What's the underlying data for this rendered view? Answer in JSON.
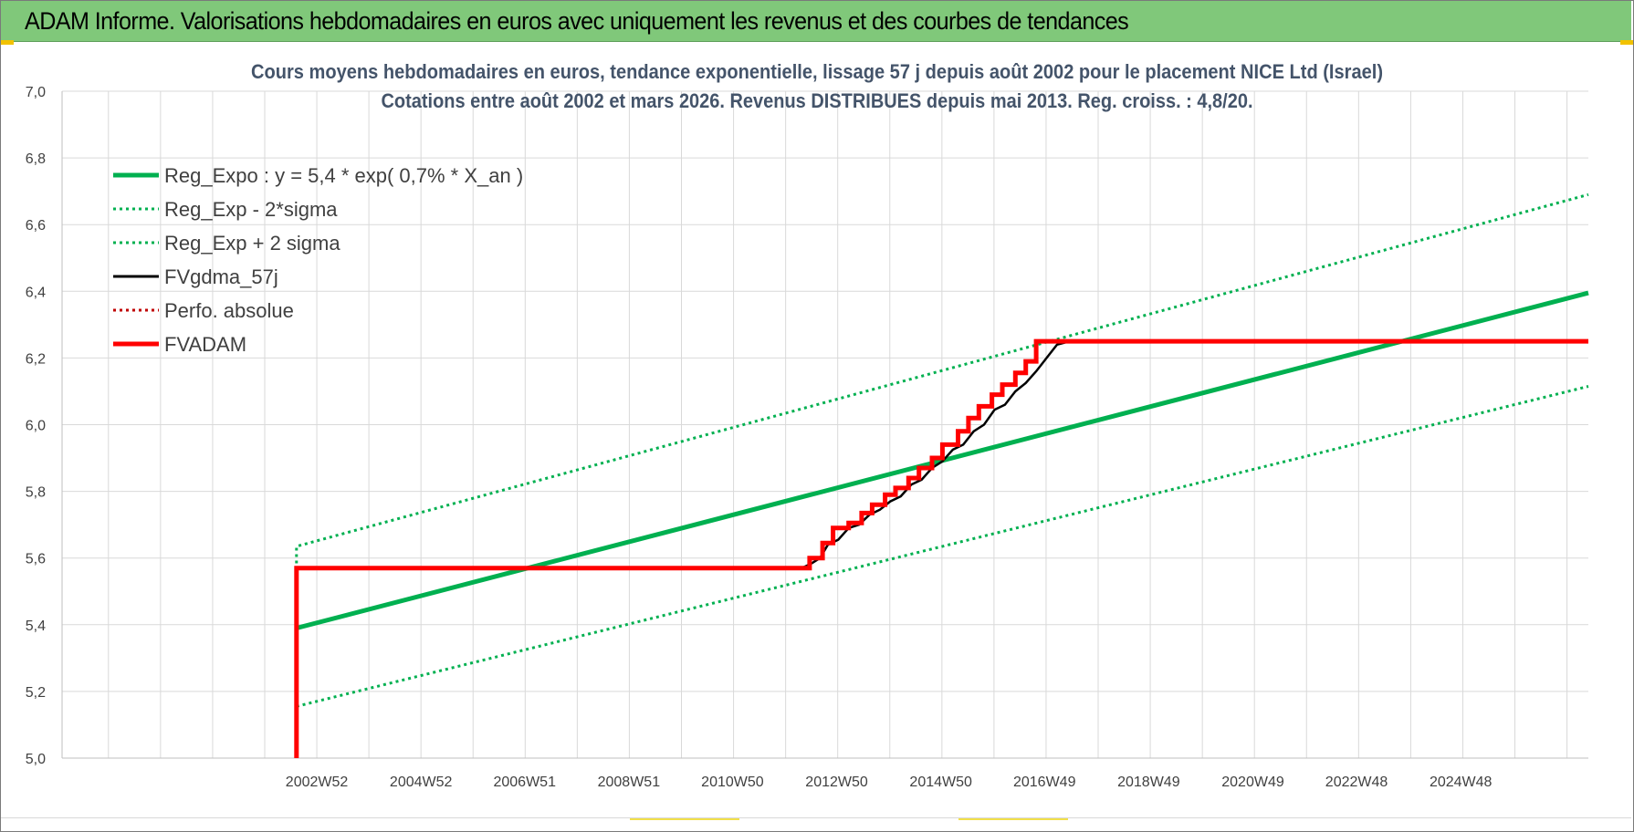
{
  "header": {
    "title": "ADAM Informe. Valorisations hebdomadaires en euros avec uniquement les revenus et des courbes de tendances"
  },
  "colors": {
    "header_bg": "#80c87a",
    "trend_green": "#00b050",
    "price_red": "#ff0000",
    "fv_black": "#000000",
    "title_blue_grey": "#44546a",
    "grid": "#d9d9d9"
  },
  "chart_data": {
    "type": "line",
    "title": [
      "Cours moyens hebdomadaires en euros, tendance exponentielle, lissage 57 j depuis août 2002 pour le placement NICE Ltd (Israel)",
      "Cotations entre août 2002 et mars 2026. Revenus DISTRIBUES depuis mai 2013. Reg. croiss. : 4,8/20."
    ],
    "xlabel": "",
    "ylabel": "",
    "x_range": [
      1998.1,
      2027.4
    ],
    "ylim": [
      5.0,
      7.0
    ],
    "y_ticks": [
      "5,0",
      "5,2",
      "5,4",
      "5,6",
      "5,8",
      "6,0",
      "6,2",
      "6,4",
      "6,6",
      "6,8",
      "7,0"
    ],
    "x_ticks": [
      {
        "label": "2002W52",
        "x": 2002.99
      },
      {
        "label": "2004W52",
        "x": 2004.99
      },
      {
        "label": "2006W51",
        "x": 2006.98
      },
      {
        "label": "2008W51",
        "x": 2008.98
      },
      {
        "label": "2010W50",
        "x": 2010.97
      },
      {
        "label": "2012W50",
        "x": 2012.97
      },
      {
        "label": "2014W50",
        "x": 2014.97
      },
      {
        "label": "2016W49",
        "x": 2016.96
      },
      {
        "label": "2018W49",
        "x": 2018.96
      },
      {
        "label": "2020W49",
        "x": 2020.96
      },
      {
        "label": "2022W48",
        "x": 2022.95
      },
      {
        "label": "2024W48",
        "x": 2024.95
      }
    ],
    "grid": true,
    "legend_position": "top-left",
    "series": [
      {
        "name": "Reg_Expo : y = 5,4 * exp( 0,7% *  X_an )",
        "color": "#00b050",
        "style": "solid-thick",
        "points": [
          [
            2002.6,
            5.39
          ],
          [
            2027.4,
            6.395
          ]
        ]
      },
      {
        "name": "Reg_Exp - 2*sigma",
        "color": "#00b050",
        "style": "dotted",
        "points": [
          [
            2002.6,
            5.155
          ],
          [
            2027.4,
            6.115
          ]
        ]
      },
      {
        "name": "Reg_Exp + 2 sigma",
        "color": "#00b050",
        "style": "dotted",
        "points": [
          [
            2002.6,
            5.565
          ],
          [
            2002.6,
            5.635
          ],
          [
            2027.4,
            6.69
          ]
        ]
      },
      {
        "name": "FVgdma_57j",
        "color": "#000000",
        "style": "solid",
        "points": [
          [
            2002.6,
            5.57
          ],
          [
            2012.3,
            5.57
          ],
          [
            2012.5,
            5.585
          ],
          [
            2012.65,
            5.6
          ],
          [
            2012.8,
            5.64
          ],
          [
            2013.0,
            5.655
          ],
          [
            2013.2,
            5.69
          ],
          [
            2013.4,
            5.7
          ],
          [
            2013.6,
            5.73
          ],
          [
            2013.8,
            5.745
          ],
          [
            2014.0,
            5.77
          ],
          [
            2014.2,
            5.785
          ],
          [
            2014.4,
            5.82
          ],
          [
            2014.6,
            5.835
          ],
          [
            2014.8,
            5.87
          ],
          [
            2015.0,
            5.89
          ],
          [
            2015.2,
            5.925
          ],
          [
            2015.4,
            5.94
          ],
          [
            2015.6,
            5.98
          ],
          [
            2015.8,
            6.0
          ],
          [
            2016.0,
            6.045
          ],
          [
            2016.2,
            6.06
          ],
          [
            2016.4,
            6.1
          ],
          [
            2016.6,
            6.125
          ],
          [
            2016.8,
            6.16
          ],
          [
            2017.0,
            6.2
          ],
          [
            2017.2,
            6.24
          ],
          [
            2017.45,
            6.25
          ],
          [
            2027.4,
            6.25
          ]
        ]
      },
      {
        "name": "Perfo. absolue",
        "color": "#c00000",
        "style": "dotted",
        "points": []
      },
      {
        "name": "FVADAM",
        "color": "#ff0000",
        "style": "solid-thick",
        "points": [
          [
            2002.6,
            5.0
          ],
          [
            2002.6,
            5.57
          ],
          [
            2012.45,
            5.57
          ],
          [
            2012.45,
            5.6
          ],
          [
            2012.7,
            5.6
          ],
          [
            2012.7,
            5.645
          ],
          [
            2012.9,
            5.645
          ],
          [
            2012.9,
            5.69
          ],
          [
            2013.2,
            5.69
          ],
          [
            2013.2,
            5.705
          ],
          [
            2013.45,
            5.705
          ],
          [
            2013.45,
            5.735
          ],
          [
            2013.65,
            5.735
          ],
          [
            2013.65,
            5.76
          ],
          [
            2013.9,
            5.76
          ],
          [
            2013.9,
            5.79
          ],
          [
            2014.1,
            5.79
          ],
          [
            2014.1,
            5.81
          ],
          [
            2014.35,
            5.81
          ],
          [
            2014.35,
            5.84
          ],
          [
            2014.55,
            5.84
          ],
          [
            2014.55,
            5.87
          ],
          [
            2014.8,
            5.87
          ],
          [
            2014.8,
            5.9
          ],
          [
            2015.0,
            5.9
          ],
          [
            2015.0,
            5.94
          ],
          [
            2015.3,
            5.94
          ],
          [
            2015.3,
            5.98
          ],
          [
            2015.5,
            5.98
          ],
          [
            2015.5,
            6.02
          ],
          [
            2015.7,
            6.02
          ],
          [
            2015.7,
            6.055
          ],
          [
            2015.95,
            6.055
          ],
          [
            2015.95,
            6.09
          ],
          [
            2016.15,
            6.09
          ],
          [
            2016.15,
            6.12
          ],
          [
            2016.4,
            6.12
          ],
          [
            2016.4,
            6.155
          ],
          [
            2016.6,
            6.155
          ],
          [
            2016.6,
            6.19
          ],
          [
            2016.8,
            6.19
          ],
          [
            2016.8,
            6.25
          ],
          [
            2027.4,
            6.25
          ]
        ]
      }
    ]
  }
}
